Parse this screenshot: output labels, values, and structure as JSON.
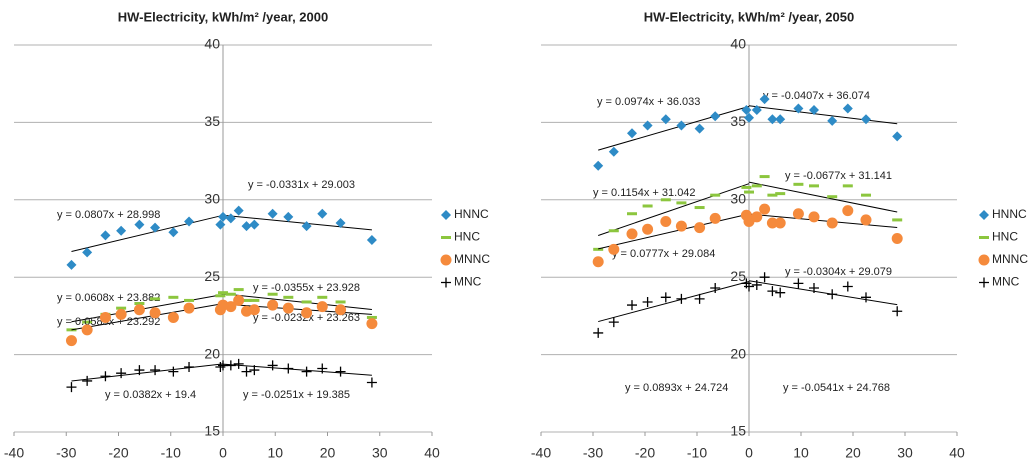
{
  "chart_data": [
    {
      "type": "scatter",
      "title": "HW-Electricity, kWh/m² /year, 2000",
      "x": [
        -29,
        -26,
        -22.5,
        -19.5,
        -16,
        -13,
        -9.5,
        -6.5,
        -0.5,
        0,
        1.5,
        3,
        4.5,
        6,
        9.5,
        12.5,
        16,
        19,
        22.5,
        28.5
      ],
      "xlim": [
        -40,
        40
      ],
      "xticks": [
        -40,
        -30,
        -20,
        -10,
        0,
        10,
        20,
        30,
        40
      ],
      "ylim": [
        15,
        40
      ],
      "yticks": [
        15,
        20,
        25,
        30,
        35,
        40
      ],
      "grid": true,
      "legend": "right",
      "series": [
        {
          "name": "HNNC",
          "color": "#2e8bc6",
          "marker": "diamond",
          "values": [
            25.8,
            26.6,
            27.7,
            28,
            28.4,
            28.2,
            27.9,
            28.6,
            28.4,
            28.9,
            28.8,
            29.3,
            28.3,
            28.4,
            29.1,
            28.9,
            28.3,
            29.1,
            28.5,
            27.4
          ],
          "trendlines": [
            {
              "label": "y = 0.0807x + 28.998",
              "slope": 0.0807,
              "intercept": 28.998
            },
            {
              "label": "y = -0.0331x + 29.003",
              "slope": -0.0331,
              "intercept": 29.003
            }
          ]
        },
        {
          "name": "HNC",
          "color": "#8cc63e",
          "marker": "dash",
          "values": [
            21.6,
            22.1,
            22.6,
            23,
            23.3,
            23.6,
            23.7,
            23.5,
            23.8,
            24,
            23.9,
            24.2,
            23.5,
            23.5,
            23.9,
            23.7,
            23.4,
            23.7,
            23.4,
            22.4
          ],
          "trendlines": [
            {
              "label": "y = 0.0608x + 23.882",
              "slope": 0.0608,
              "intercept": 23.882
            },
            {
              "label": "y = -0.0355x + 23.928",
              "slope": -0.0355,
              "intercept": 23.928
            }
          ]
        },
        {
          "name": "MNNC",
          "color": "#f58a3c",
          "marker": "circle",
          "values": [
            20.9,
            21.6,
            22.4,
            22.6,
            22.9,
            22.7,
            22.4,
            23,
            22.9,
            23.2,
            23.1,
            23.5,
            22.8,
            22.9,
            23.2,
            23,
            22.7,
            23.1,
            22.9,
            22
          ],
          "trendlines": [
            {
              "label": "y = 0.0585x + 23.292",
              "slope": 0.0585,
              "intercept": 23.292
            },
            {
              "label": "y = -0.0232x + 23.263",
              "slope": -0.0232,
              "intercept": 23.263
            }
          ]
        },
        {
          "name": "MNC",
          "color": "#000000",
          "marker": "plus",
          "values": [
            17.9,
            18.3,
            18.6,
            18.8,
            19,
            19,
            18.9,
            19.2,
            19.2,
            19.3,
            19.3,
            19.4,
            18.9,
            19,
            19.3,
            19.1,
            18.9,
            19.1,
            18.9,
            18.2
          ],
          "trendlines": [
            {
              "label": "y = 0.0382x + 19.4",
              "slope": 0.0382,
              "intercept": 19.4
            },
            {
              "label": "y = -0.0251x + 19.385",
              "slope": -0.0251,
              "intercept": 19.385
            }
          ]
        }
      ]
    },
    {
      "type": "scatter",
      "title": "HW-Electricity, kWh/m² /year, 2050",
      "x": [
        -29,
        -26,
        -22.5,
        -19.5,
        -16,
        -13,
        -9.5,
        -6.5,
        -0.5,
        0,
        1.5,
        3,
        4.5,
        6,
        9.5,
        12.5,
        16,
        19,
        22.5,
        28.5
      ],
      "xlim": [
        -40,
        40
      ],
      "xticks": [
        -40,
        -30,
        -20,
        -10,
        0,
        10,
        20,
        30,
        40
      ],
      "ylim": [
        15,
        40
      ],
      "yticks": [
        15,
        20,
        25,
        30,
        35,
        40
      ],
      "grid": true,
      "legend": "right",
      "series": [
        {
          "name": "HNNC",
          "color": "#2e8bc6",
          "marker": "diamond",
          "values": [
            32.2,
            33.1,
            34.3,
            34.8,
            35.2,
            34.8,
            34.6,
            35.4,
            35.8,
            35.3,
            35.8,
            36.5,
            35.2,
            35.2,
            35.9,
            35.8,
            35.1,
            35.9,
            35.2,
            34.1
          ],
          "trendlines": [
            {
              "label": "y = 0.0974x + 36.033",
              "slope": 0.0974,
              "intercept": 36.033
            },
            {
              "label": "y = -0.0407x + 36.074",
              "slope": -0.0407,
              "intercept": 36.074
            }
          ]
        },
        {
          "name": "HNC",
          "color": "#8cc63e",
          "marker": "dash",
          "values": [
            26.8,
            28,
            29.1,
            29.6,
            30,
            29.8,
            29.5,
            30.3,
            30.8,
            30.5,
            30.9,
            31.5,
            30.3,
            30.4,
            31,
            30.9,
            30.2,
            30.9,
            30.3,
            28.7
          ],
          "trendlines": [
            {
              "label": "y = 0.1154x + 31.042",
              "slope": 0.1154,
              "intercept": 31.042
            },
            {
              "label": "y = -0.0677x + 31.141",
              "slope": -0.0677,
              "intercept": 31.141
            }
          ]
        },
        {
          "name": "MNNC",
          "color": "#f58a3c",
          "marker": "circle",
          "values": [
            26,
            26.8,
            27.8,
            28.1,
            28.6,
            28.3,
            28.2,
            28.8,
            29,
            28.6,
            28.9,
            29.4,
            28.5,
            28.5,
            29.1,
            28.9,
            28.5,
            29.3,
            28.7,
            27.5
          ],
          "trendlines": [
            {
              "label": "y = 0.0777x + 29.084",
              "slope": 0.0777,
              "intercept": 29.084
            },
            {
              "label": "y = -0.0304x + 29.079",
              "slope": -0.0304,
              "intercept": 29.079
            }
          ]
        },
        {
          "name": "MNC",
          "color": "#000000",
          "marker": "plus",
          "values": [
            21.4,
            22.1,
            23.2,
            23.4,
            23.7,
            23.6,
            23.6,
            24.3,
            24.6,
            24.4,
            24.5,
            25,
            24.1,
            24,
            24.6,
            24.3,
            23.9,
            24.4,
            23.7,
            22.8
          ],
          "trendlines": [
            {
              "label": "y = 0.0893x + 24.724",
              "slope": 0.0893,
              "intercept": 24.724
            },
            {
              "label": "y = -0.0541x + 24.768",
              "slope": -0.0541,
              "intercept": 24.768
            }
          ]
        }
      ]
    }
  ]
}
